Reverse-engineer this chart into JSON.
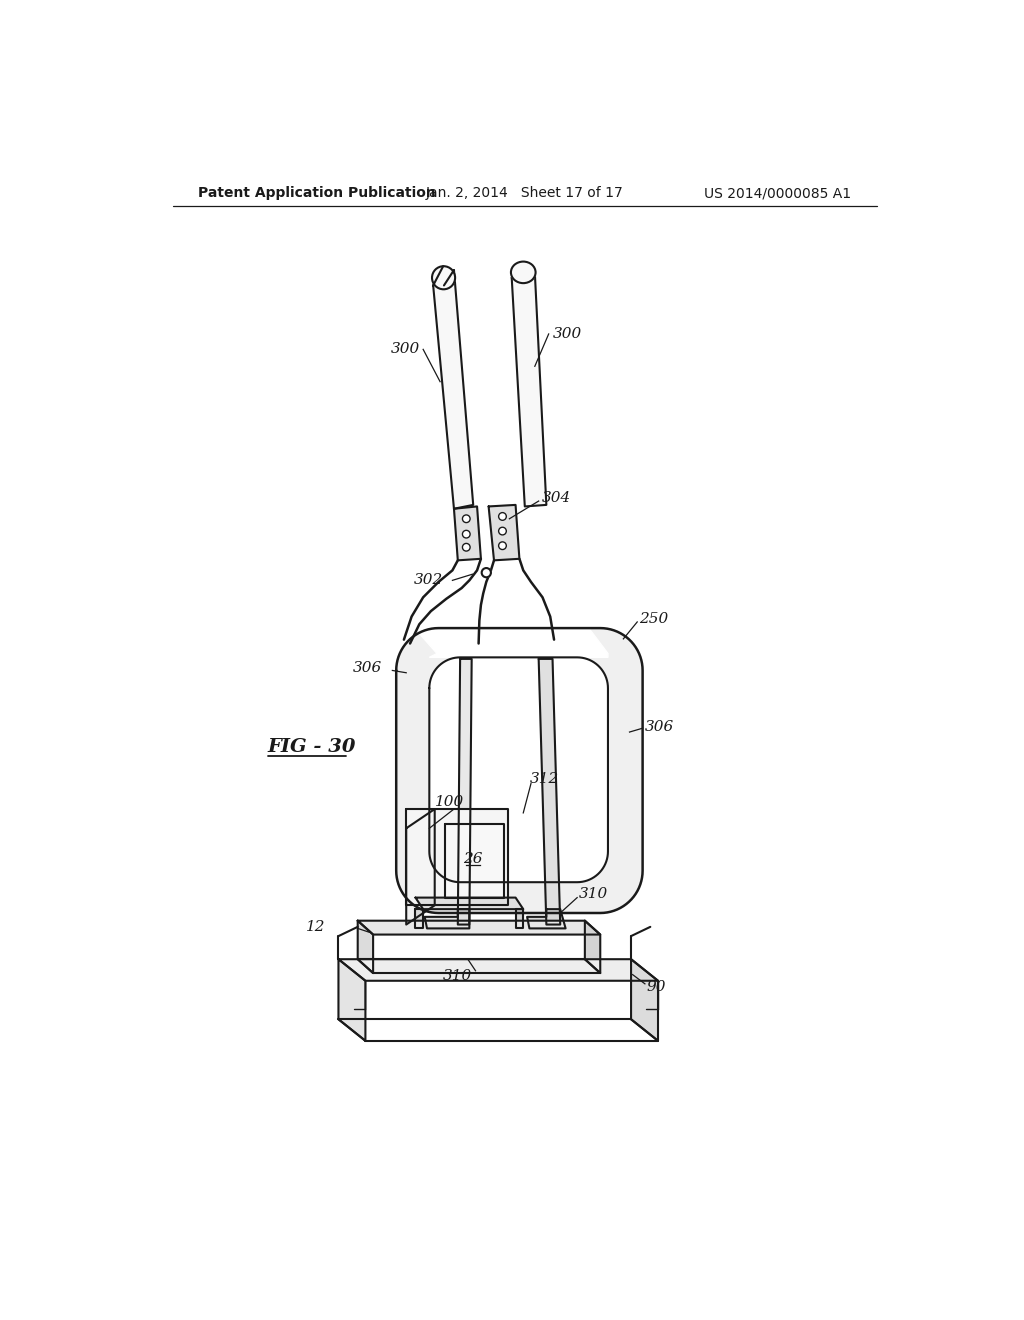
{
  "bg_color": "#ffffff",
  "line_color": "#1a1a1a",
  "text_color": "#1a1a1a",
  "header_left": "Patent Application Publication",
  "header_center": "Jan. 2, 2014   Sheet 17 of 17",
  "header_right": "US 2014/0000085 A1",
  "fig_label": "FIG - 30"
}
